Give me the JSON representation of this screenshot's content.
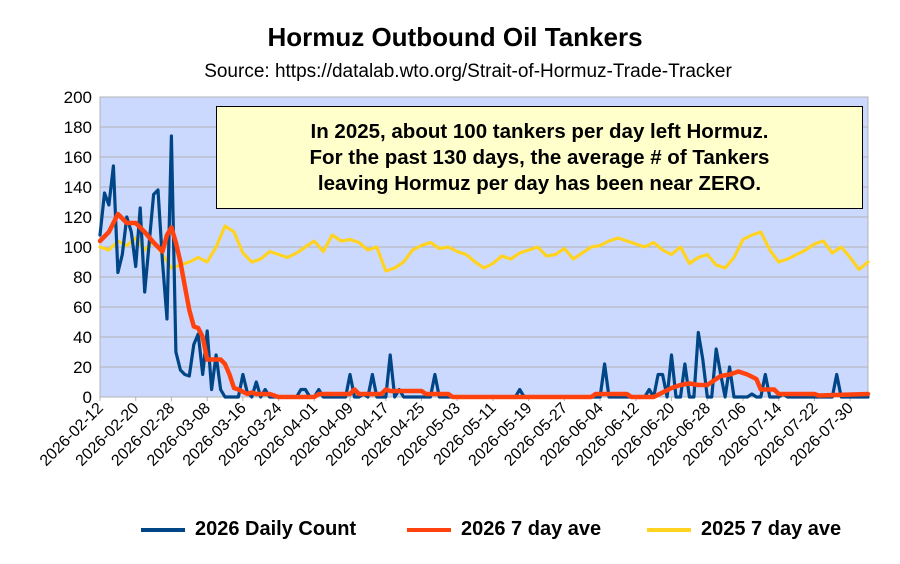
{
  "chart_data": {
    "type": "line",
    "title": "Hormuz Outbound Oil Tankers",
    "subtitle": "Source: https://datalab.wto.org/Strait-of-Hormuz-Trade-Tracker",
    "ylim": [
      0,
      200
    ],
    "yticks": [
      0,
      20,
      40,
      60,
      80,
      100,
      120,
      140,
      160,
      180,
      200
    ],
    "xlim": [
      "2026-02-12",
      "2026-08-03"
    ],
    "xticks": [
      "2026-02-12",
      "2026-02-20",
      "2026-02-28",
      "2026-03-08",
      "2026-03-16",
      "2026-03-24",
      "2026-04-01",
      "2026-04-09",
      "2026-04-17",
      "2026-04-25",
      "2026-05-03",
      "2026-05-11",
      "2026-05-19",
      "2026-05-27",
      "2026-06-04",
      "2026-06-12",
      "2026-06-20",
      "2026-06-28",
      "2026-07-06",
      "2026-07-14",
      "2026-07-22",
      "2026-07-30"
    ],
    "grid": "horizontal",
    "plot_background": "#ccd9ff",
    "legend_position": "bottom",
    "annotation": [
      "In 2025, about 100 tankers per day left Hormuz.",
      "For the past 130 days, the average # of Tankers",
      "leaving Hormuz per day has been near ZERO."
    ],
    "series": [
      {
        "name": "2026 Daily Count",
        "color": "#004586",
        "x": [
          "2026-02-12",
          "2026-02-13",
          "2026-02-14",
          "2026-02-15",
          "2026-02-16",
          "2026-02-17",
          "2026-02-18",
          "2026-02-19",
          "2026-02-20",
          "2026-02-21",
          "2026-02-22",
          "2026-02-23",
          "2026-02-24",
          "2026-02-25",
          "2026-02-26",
          "2026-02-27",
          "2026-02-28",
          "2026-03-01",
          "2026-03-02",
          "2026-03-03",
          "2026-03-04",
          "2026-03-05",
          "2026-03-06",
          "2026-03-07",
          "2026-03-08",
          "2026-03-09",
          "2026-03-10",
          "2026-03-11",
          "2026-03-12",
          "2026-03-13",
          "2026-03-14",
          "2026-03-15",
          "2026-03-16",
          "2026-03-17",
          "2026-03-18",
          "2026-03-19",
          "2026-03-20",
          "2026-03-21",
          "2026-03-22",
          "2026-03-24",
          "2026-03-28",
          "2026-03-29",
          "2026-03-30",
          "2026-03-31",
          "2026-04-02",
          "2026-04-03",
          "2026-04-04",
          "2026-04-08",
          "2026-04-09",
          "2026-04-10",
          "2026-04-12",
          "2026-04-13",
          "2026-04-14",
          "2026-04-15",
          "2026-04-17",
          "2026-04-18",
          "2026-04-19",
          "2026-04-20",
          "2026-04-21",
          "2026-04-27",
          "2026-04-28",
          "2026-04-29",
          "2026-05-16",
          "2026-05-17",
          "2026-05-18",
          "2026-06-04",
          "2026-06-05",
          "2026-06-06",
          "2026-06-14",
          "2026-06-15",
          "2026-06-16",
          "2026-06-17",
          "2026-06-18",
          "2026-06-19",
          "2026-06-20",
          "2026-06-21",
          "2026-06-22",
          "2026-06-23",
          "2026-06-24",
          "2026-06-25",
          "2026-06-26",
          "2026-06-27",
          "2026-06-28",
          "2026-06-29",
          "2026-06-30",
          "2026-07-01",
          "2026-07-02",
          "2026-07-03",
          "2026-07-04",
          "2026-07-05",
          "2026-07-06",
          "2026-07-07",
          "2026-07-08",
          "2026-07-09",
          "2026-07-10",
          "2026-07-11",
          "2026-07-12",
          "2026-07-13",
          "2026-07-14",
          "2026-07-15",
          "2026-07-26",
          "2026-07-27",
          "2026-07-28",
          "2026-08-03"
        ],
        "values": [
          108,
          136,
          128,
          154,
          83,
          95,
          120,
          110,
          87,
          126,
          70,
          102,
          135,
          138,
          90,
          52,
          174,
          30,
          18,
          15,
          14,
          35,
          42,
          15,
          44,
          5,
          28,
          5,
          0,
          0,
          0,
          0,
          15,
          3,
          0,
          10,
          0,
          5,
          0,
          0,
          0,
          5,
          5,
          0,
          5,
          0,
          0,
          0,
          15,
          0,
          2,
          0,
          15,
          0,
          0,
          28,
          0,
          5,
          0,
          0,
          15,
          0,
          0,
          5,
          0,
          0,
          22,
          0,
          0,
          5,
          0,
          15,
          15,
          0,
          28,
          0,
          0,
          22,
          0,
          0,
          43,
          25,
          0,
          0,
          32,
          15,
          0,
          20,
          0,
          0,
          0,
          0,
          2,
          0,
          0,
          15,
          0,
          0,
          0,
          2,
          0,
          15,
          0,
          0
        ]
      },
      {
        "name": "2026 7 day ave",
        "color": "#ff420e",
        "x": [
          "2026-02-12",
          "2026-02-14",
          "2026-02-16",
          "2026-02-18",
          "2026-02-20",
          "2026-02-22",
          "2026-02-24",
          "2026-02-26",
          "2026-02-27",
          "2026-02-28",
          "2026-03-01",
          "2026-03-02",
          "2026-03-03",
          "2026-03-04",
          "2026-03-05",
          "2026-03-06",
          "2026-03-07",
          "2026-03-08",
          "2026-03-09",
          "2026-03-10",
          "2026-03-11",
          "2026-03-12",
          "2026-03-13",
          "2026-03-14",
          "2026-03-15",
          "2026-03-17",
          "2026-03-18",
          "2026-03-19",
          "2026-03-20",
          "2026-03-22",
          "2026-03-23",
          "2026-03-24",
          "2026-04-01",
          "2026-04-02",
          "2026-04-09",
          "2026-04-10",
          "2026-04-11",
          "2026-04-16",
          "2026-04-17",
          "2026-04-18",
          "2026-04-25",
          "2026-04-26",
          "2026-05-01",
          "2026-05-02",
          "2026-05-28",
          "2026-06-02",
          "2026-06-03",
          "2026-06-10",
          "2026-06-11",
          "2026-06-16",
          "2026-06-18",
          "2026-06-20",
          "2026-06-22",
          "2026-06-24",
          "2026-06-26",
          "2026-06-28",
          "2026-06-30",
          "2026-07-01",
          "2026-07-03",
          "2026-07-05",
          "2026-07-07",
          "2026-07-09",
          "2026-07-10",
          "2026-07-13",
          "2026-07-14",
          "2026-07-22",
          "2026-07-23",
          "2026-08-03"
        ],
        "values": [
          104,
          110,
          122,
          116,
          116,
          110,
          103,
          97,
          108,
          113,
          103,
          90,
          74,
          58,
          47,
          46,
          40,
          25,
          25,
          25,
          25,
          22,
          15,
          6,
          5,
          2,
          3,
          2,
          2,
          2,
          1,
          0,
          0,
          2,
          2,
          5,
          2,
          2,
          5,
          4,
          4,
          2,
          2,
          0,
          0,
          0,
          2,
          2,
          0,
          0,
          3,
          6,
          8,
          9,
          8,
          8,
          12,
          14,
          15,
          17,
          15,
          12,
          5,
          5,
          2,
          2,
          1,
          2
        ]
      },
      {
        "name": "2025 7 day ave",
        "color": "#ffd320",
        "x": [
          "2026-02-12",
          "2026-02-14",
          "2026-02-16",
          "2026-02-18",
          "2026-02-20",
          "2026-02-22",
          "2026-02-24",
          "2026-02-26",
          "2026-02-28",
          "2026-03-02",
          "2026-03-04",
          "2026-03-06",
          "2026-03-08",
          "2026-03-10",
          "2026-03-12",
          "2026-03-14",
          "2026-03-16",
          "2026-03-18",
          "2026-03-20",
          "2026-03-22",
          "2026-03-24",
          "2026-03-26",
          "2026-03-28",
          "2026-03-30",
          "2026-04-01",
          "2026-04-03",
          "2026-04-05",
          "2026-04-07",
          "2026-04-09",
          "2026-04-11",
          "2026-04-13",
          "2026-04-15",
          "2026-04-17",
          "2026-04-19",
          "2026-04-21",
          "2026-04-23",
          "2026-04-25",
          "2026-04-27",
          "2026-04-29",
          "2026-05-01",
          "2026-05-03",
          "2026-05-05",
          "2026-05-07",
          "2026-05-09",
          "2026-05-11",
          "2026-05-13",
          "2026-05-15",
          "2026-05-17",
          "2026-05-19",
          "2026-05-21",
          "2026-05-23",
          "2026-05-25",
          "2026-05-27",
          "2026-05-29",
          "2026-05-31",
          "2026-06-02",
          "2026-06-04",
          "2026-06-06",
          "2026-06-08",
          "2026-06-10",
          "2026-06-12",
          "2026-06-14",
          "2026-06-16",
          "2026-06-18",
          "2026-06-20",
          "2026-06-22",
          "2026-06-24",
          "2026-06-26",
          "2026-06-28",
          "2026-06-30",
          "2026-07-02",
          "2026-07-04",
          "2026-07-06",
          "2026-07-08",
          "2026-07-10",
          "2026-07-12",
          "2026-07-14",
          "2026-07-16",
          "2026-07-18",
          "2026-07-20",
          "2026-07-22",
          "2026-07-24",
          "2026-07-26",
          "2026-07-28",
          "2026-07-30",
          "2026-08-01",
          "2026-08-03"
        ],
        "values": [
          100,
          98,
          104,
          101,
          106,
          98,
          104,
          95,
          86,
          88,
          90,
          93,
          90,
          100,
          114,
          110,
          96,
          90,
          92,
          97,
          95,
          93,
          96,
          100,
          104,
          97,
          108,
          104,
          105,
          103,
          98,
          100,
          84,
          86,
          90,
          98,
          101,
          103,
          99,
          100,
          97,
          95,
          90,
          86,
          89,
          94,
          92,
          96,
          98,
          100,
          94,
          95,
          99,
          92,
          96,
          100,
          101,
          104,
          106,
          104,
          102,
          100,
          103,
          98,
          95,
          100,
          89,
          93,
          95,
          88,
          86,
          93,
          105,
          108,
          110,
          98,
          90,
          92,
          95,
          98,
          102,
          104,
          96,
          100,
          93,
          85,
          90
        ]
      }
    ]
  }
}
